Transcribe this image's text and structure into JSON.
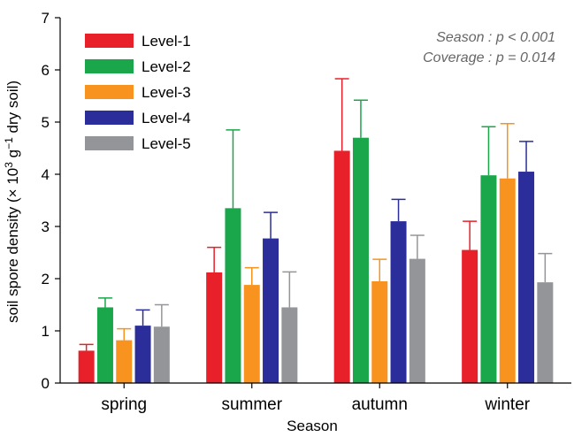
{
  "chart_data": {
    "type": "bar",
    "title": "",
    "xlabel": "Season",
    "ylabel_parts": {
      "pre": "soil spore density (× 10",
      "sup1": "3",
      "mid": " g",
      "sup2": "−1",
      "post": " dry soil)"
    },
    "ylim": [
      0,
      7
    ],
    "yticks": [
      "0",
      "1",
      "2",
      "3",
      "4",
      "5",
      "6",
      "7"
    ],
    "categories": [
      "spring",
      "summer",
      "autumn",
      "winter"
    ],
    "series": [
      {
        "name": "Level-1",
        "color": "#e8202a",
        "values": [
          0.62,
          2.12,
          4.45,
          2.55
        ],
        "errors": [
          0.12,
          0.48,
          1.38,
          0.55
        ]
      },
      {
        "name": "Level-2",
        "color": "#1aa64a",
        "values": [
          1.45,
          3.35,
          4.7,
          3.98
        ],
        "errors": [
          0.18,
          1.5,
          0.72,
          0.93
        ]
      },
      {
        "name": "Level-3",
        "color": "#f7931e",
        "values": [
          0.82,
          1.88,
          1.95,
          3.92
        ],
        "errors": [
          0.22,
          0.33,
          0.42,
          1.05
        ]
      },
      {
        "name": "Level-4",
        "color": "#2b2d9a",
        "values": [
          1.1,
          2.77,
          3.1,
          4.05
        ],
        "errors": [
          0.3,
          0.5,
          0.42,
          0.58
        ]
      },
      {
        "name": "Level-5",
        "color": "#939598",
        "values": [
          1.08,
          1.45,
          2.38,
          1.93
        ],
        "errors": [
          0.42,
          0.68,
          0.45,
          0.55
        ]
      }
    ],
    "annotations": [
      "Season : p < 0.001",
      "Coverage : p = 0.014"
    ],
    "legend_position": "top-left",
    "grid": false
  }
}
